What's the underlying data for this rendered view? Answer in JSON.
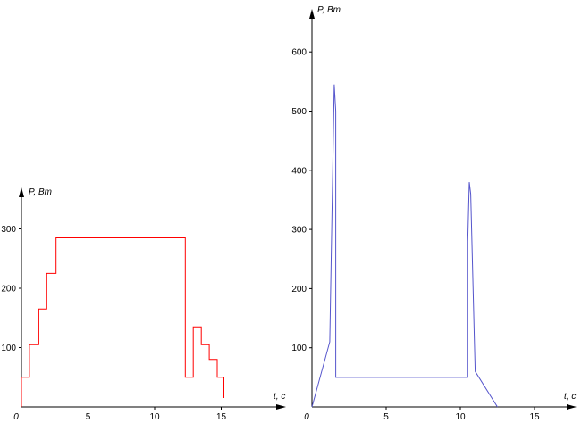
{
  "chart_data": [
    {
      "type": "line",
      "xlabel": "t, c",
      "ylabel": "P, Вт",
      "xlim": [
        0,
        17
      ],
      "ylim": [
        0,
        335
      ],
      "xticks": [
        "0",
        "5",
        "10",
        "15"
      ],
      "yticks": [
        "100",
        "200",
        "300"
      ],
      "grid": false,
      "color": "#ff0000",
      "series": [
        {
          "x": [
            0,
            0,
            0.6,
            0.6,
            1.3,
            1.3,
            1.9,
            1.9,
            2.6,
            2.6,
            12.3,
            12.3,
            12.9,
            12.9,
            13.5,
            13.5,
            14.1,
            14.1,
            14.7,
            14.7,
            15.2,
            15.2
          ],
          "y": [
            0,
            50,
            50,
            105,
            105,
            165,
            165,
            225,
            225,
            285,
            285,
            50,
            50,
            135,
            135,
            105,
            105,
            80,
            80,
            50,
            50,
            15
          ]
        }
      ]
    },
    {
      "type": "line",
      "xlabel": "t, c",
      "ylabel": "P, Вт",
      "xlim": [
        0,
        18
      ],
      "ylim": [
        0,
        640
      ],
      "xticks": [
        "0",
        "5",
        "10",
        "15"
      ],
      "yticks": [
        "100",
        "200",
        "300",
        "400",
        "500",
        "600"
      ],
      "grid": false,
      "color": "#5555cc",
      "series": [
        {
          "x": [
            0,
            1.2,
            1.5,
            1.6,
            1.6,
            10.5,
            10.5,
            10.6,
            10.7,
            11.0,
            12.5
          ],
          "y": [
            0,
            110,
            545,
            500,
            50,
            50,
            280,
            380,
            360,
            60,
            0
          ]
        }
      ]
    }
  ]
}
